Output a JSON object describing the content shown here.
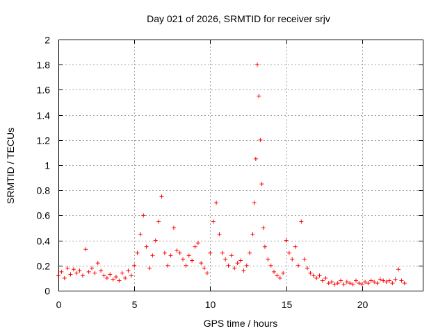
{
  "chart_data": {
    "type": "scatter",
    "title": "Day 021 of 2026, SRMTID for receiver srjv",
    "xlabel": "GPS time / hours",
    "ylabel": "SRMTID / TECUs",
    "xlim": [
      0,
      24
    ],
    "ylim": [
      0,
      2
    ],
    "xticks": [
      "0",
      "5",
      "10",
      "15",
      "20"
    ],
    "xtick_values": [
      0,
      5,
      10,
      15,
      20
    ],
    "yticks": [
      "0",
      "0.2",
      "0.4",
      "0.6",
      "0.8",
      "1",
      "1.2",
      "1.4",
      "1.6",
      "1.8",
      "2"
    ],
    "ytick_values": [
      0,
      0.2,
      0.4,
      0.6,
      0.8,
      1.0,
      1.2,
      1.4,
      1.6,
      1.8,
      2.0
    ],
    "grid": true,
    "marker": "plus",
    "color": "#ff0000",
    "series": [
      {
        "name": "SRMTID",
        "x": [
          0.0,
          0.2,
          0.4,
          0.6,
          0.8,
          1.0,
          1.2,
          1.4,
          1.6,
          1.8,
          2.0,
          2.2,
          2.4,
          2.6,
          2.8,
          3.0,
          3.2,
          3.4,
          3.6,
          3.8,
          4.0,
          4.2,
          4.4,
          4.6,
          4.8,
          5.0,
          5.2,
          5.4,
          5.6,
          5.8,
          6.0,
          6.2,
          6.4,
          6.6,
          6.8,
          7.0,
          7.2,
          7.4,
          7.6,
          7.8,
          8.0,
          8.2,
          8.4,
          8.6,
          8.8,
          9.0,
          9.2,
          9.4,
          9.6,
          9.8,
          10.0,
          10.2,
          10.4,
          10.6,
          10.8,
          11.0,
          11.2,
          11.4,
          11.6,
          11.8,
          12.0,
          12.2,
          12.4,
          12.6,
          12.8,
          12.9,
          13.0,
          13.1,
          13.2,
          13.3,
          13.4,
          13.5,
          13.6,
          13.8,
          14.0,
          14.2,
          14.4,
          14.6,
          14.8,
          15.0,
          15.2,
          15.4,
          15.6,
          15.8,
          16.0,
          16.2,
          16.4,
          16.6,
          16.8,
          17.0,
          17.2,
          17.4,
          17.6,
          17.8,
          18.0,
          18.2,
          18.4,
          18.6,
          18.8,
          19.0,
          19.2,
          19.4,
          19.6,
          19.8,
          20.0,
          20.2,
          20.4,
          20.6,
          20.8,
          21.0,
          21.2,
          21.4,
          21.6,
          21.8,
          22.0,
          22.2,
          22.4,
          22.6,
          22.8
        ],
        "y": [
          0.12,
          0.15,
          0.1,
          0.18,
          0.13,
          0.17,
          0.14,
          0.16,
          0.12,
          0.33,
          0.15,
          0.18,
          0.14,
          0.22,
          0.16,
          0.12,
          0.1,
          0.13,
          0.09,
          0.11,
          0.08,
          0.14,
          0.1,
          0.16,
          0.12,
          0.2,
          0.3,
          0.45,
          0.6,
          0.35,
          0.18,
          0.28,
          0.4,
          0.55,
          0.75,
          0.3,
          0.2,
          0.28,
          0.5,
          0.32,
          0.3,
          0.25,
          0.2,
          0.28,
          0.24,
          0.35,
          0.38,
          0.22,
          0.18,
          0.14,
          0.3,
          0.55,
          0.7,
          0.45,
          0.3,
          0.25,
          0.2,
          0.28,
          0.18,
          0.22,
          0.24,
          0.16,
          0.2,
          0.3,
          0.45,
          0.7,
          1.05,
          1.8,
          1.55,
          1.2,
          0.85,
          0.5,
          0.35,
          0.25,
          0.2,
          0.15,
          0.12,
          0.1,
          0.14,
          0.4,
          0.3,
          0.25,
          0.35,
          0.2,
          0.55,
          0.25,
          0.18,
          0.14,
          0.12,
          0.1,
          0.12,
          0.08,
          0.1,
          0.06,
          0.07,
          0.05,
          0.06,
          0.08,
          0.05,
          0.07,
          0.06,
          0.05,
          0.08,
          0.06,
          0.05,
          0.07,
          0.06,
          0.08,
          0.07,
          0.06,
          0.09,
          0.08,
          0.07,
          0.08,
          0.06,
          0.09,
          0.17,
          0.08,
          0.06
        ]
      }
    ]
  }
}
